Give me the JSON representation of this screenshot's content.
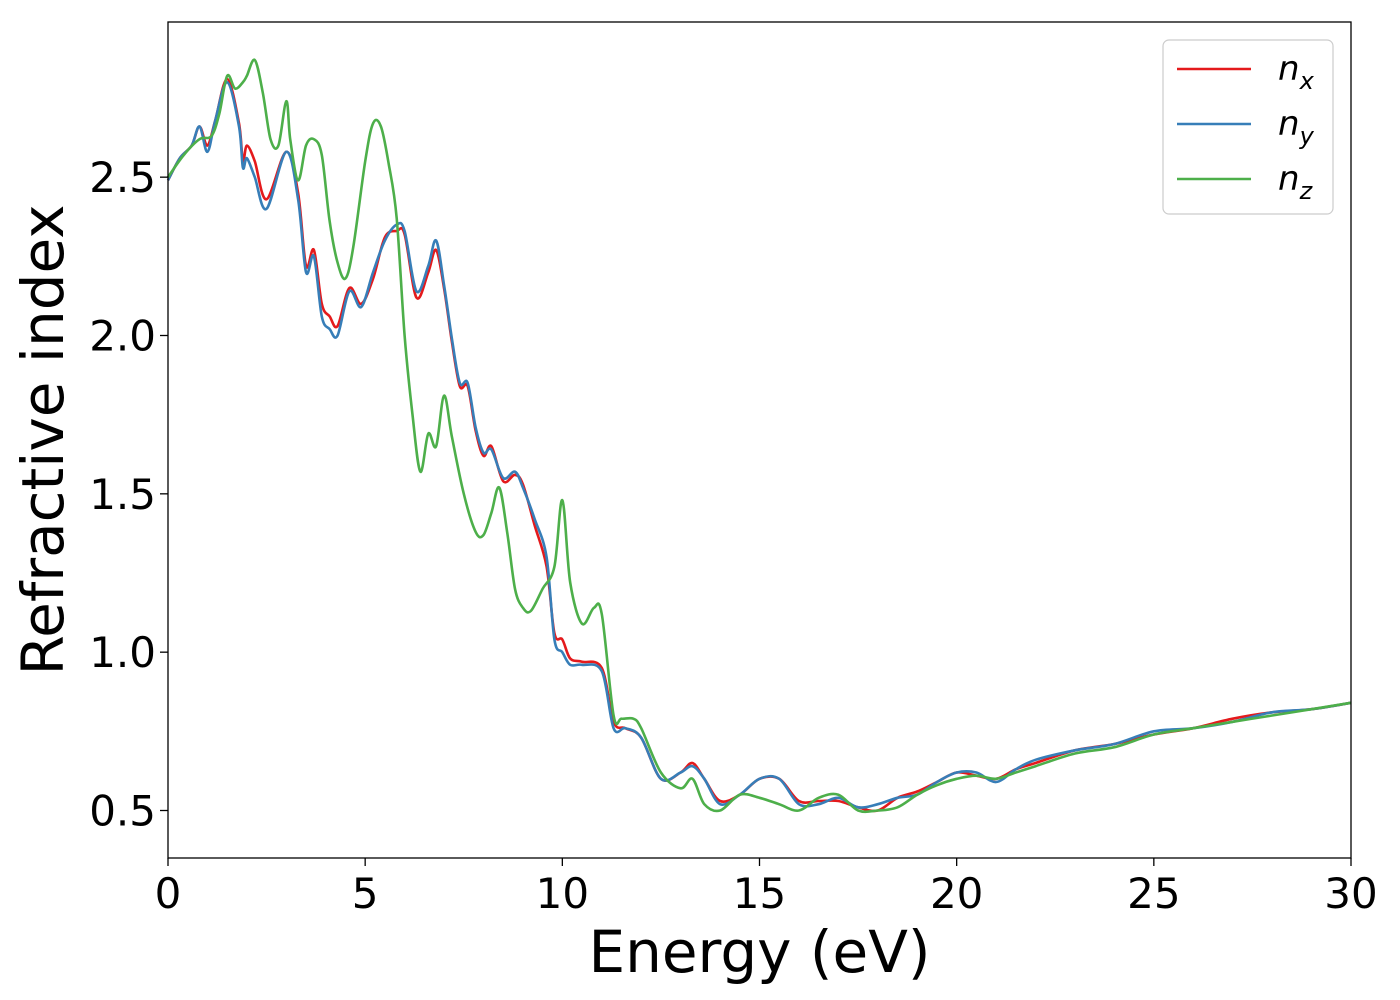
{
  "chart_data": {
    "type": "line",
    "title": "",
    "xlabel": "Energy (eV)",
    "ylabel": "Refractive index",
    "xlim": [
      0,
      30
    ],
    "ylim": [
      0.35,
      2.99
    ],
    "xticks": [
      0,
      5,
      10,
      15,
      20,
      25,
      30
    ],
    "xtick_labels": [
      "0",
      "5",
      "10",
      "15",
      "20",
      "25",
      "30"
    ],
    "yticks": [
      0.5,
      1.0,
      1.5,
      2.0,
      2.5
    ],
    "ytick_labels": [
      "0.5",
      "1.0",
      "1.5",
      "2.0",
      "2.5"
    ],
    "grid": false,
    "legend_position": "top-right",
    "series": [
      {
        "name": "n",
        "subscript": "x",
        "color": "#e41a1c",
        "x": [
          0,
          0.3,
          0.6,
          0.8,
          1.0,
          1.2,
          1.5,
          1.8,
          1.9,
          2.0,
          2.2,
          2.5,
          3.0,
          3.3,
          3.5,
          3.7,
          3.9,
          4.1,
          4.3,
          4.6,
          4.9,
          5.2,
          5.5,
          5.8,
          6.0,
          6.3,
          6.6,
          6.8,
          7.0,
          7.2,
          7.4,
          7.6,
          7.8,
          8.0,
          8.2,
          8.5,
          8.8,
          9.0,
          9.3,
          9.6,
          9.8,
          10.0,
          10.2,
          10.5,
          11.0,
          11.3,
          11.6,
          12.0,
          12.5,
          13.0,
          13.3,
          13.6,
          14.0,
          14.5,
          15.0,
          15.5,
          16.0,
          16.5,
          17.0,
          17.5,
          18.0,
          18.5,
          19.0,
          19.5,
          20.0,
          20.5,
          21.0,
          21.5,
          22.0,
          23.0,
          24.0,
          25.0,
          26.0,
          27.0,
          28.0,
          29.0,
          30.0
        ],
        "y": [
          2.49,
          2.56,
          2.6,
          2.66,
          2.6,
          2.68,
          2.81,
          2.67,
          2.55,
          2.6,
          2.55,
          2.43,
          2.58,
          2.45,
          2.22,
          2.27,
          2.1,
          2.06,
          2.03,
          2.15,
          2.1,
          2.18,
          2.31,
          2.33,
          2.32,
          2.12,
          2.2,
          2.27,
          2.15,
          1.98,
          1.84,
          1.84,
          1.7,
          1.62,
          1.65,
          1.54,
          1.56,
          1.53,
          1.4,
          1.27,
          1.06,
          1.04,
          0.98,
          0.97,
          0.95,
          0.78,
          0.76,
          0.73,
          0.6,
          0.62,
          0.65,
          0.6,
          0.53,
          0.55,
          0.6,
          0.6,
          0.53,
          0.53,
          0.53,
          0.51,
          0.5,
          0.54,
          0.56,
          0.59,
          0.62,
          0.61,
          0.6,
          0.63,
          0.65,
          0.69,
          0.71,
          0.74,
          0.76,
          0.79,
          0.81,
          0.82,
          0.84
        ]
      },
      {
        "name": "n",
        "subscript": "y",
        "color": "#377eb8",
        "x": [
          0,
          0.3,
          0.6,
          0.8,
          1.0,
          1.2,
          1.5,
          1.8,
          1.9,
          2.0,
          2.2,
          2.5,
          3.0,
          3.3,
          3.5,
          3.7,
          3.9,
          4.1,
          4.3,
          4.6,
          4.9,
          5.2,
          5.5,
          5.8,
          6.0,
          6.3,
          6.6,
          6.8,
          7.0,
          7.2,
          7.4,
          7.6,
          7.8,
          8.0,
          8.2,
          8.5,
          8.8,
          9.0,
          9.3,
          9.6,
          9.8,
          10.0,
          10.2,
          10.5,
          11.0,
          11.3,
          11.6,
          12.0,
          12.5,
          13.0,
          13.3,
          13.6,
          14.0,
          14.5,
          15.0,
          15.5,
          16.0,
          16.5,
          17.0,
          17.5,
          18.0,
          18.5,
          19.0,
          19.5,
          20.0,
          20.5,
          21.0,
          21.5,
          22.0,
          23.0,
          24.0,
          25.0,
          26.0,
          27.0,
          28.0,
          29.0,
          30.0
        ],
        "y": [
          2.49,
          2.56,
          2.6,
          2.66,
          2.58,
          2.68,
          2.8,
          2.66,
          2.53,
          2.56,
          2.5,
          2.4,
          2.58,
          2.43,
          2.2,
          2.25,
          2.06,
          2.02,
          2.0,
          2.14,
          2.09,
          2.2,
          2.3,
          2.35,
          2.33,
          2.14,
          2.22,
          2.3,
          2.16,
          1.99,
          1.85,
          1.85,
          1.71,
          1.63,
          1.64,
          1.55,
          1.57,
          1.52,
          1.42,
          1.3,
          1.04,
          1.0,
          0.96,
          0.96,
          0.94,
          0.76,
          0.76,
          0.73,
          0.6,
          0.62,
          0.64,
          0.6,
          0.52,
          0.55,
          0.6,
          0.6,
          0.52,
          0.52,
          0.54,
          0.51,
          0.52,
          0.54,
          0.55,
          0.59,
          0.62,
          0.62,
          0.59,
          0.63,
          0.66,
          0.69,
          0.71,
          0.75,
          0.76,
          0.78,
          0.81,
          0.82,
          0.84
        ]
      },
      {
        "name": "n",
        "subscript": "z",
        "color": "#4daf4a",
        "x": [
          0,
          0.4,
          0.8,
          1.1,
          1.3,
          1.5,
          1.7,
          1.9,
          2.0,
          2.2,
          2.4,
          2.6,
          2.8,
          3.0,
          3.1,
          3.3,
          3.5,
          3.7,
          3.9,
          4.1,
          4.3,
          4.5,
          4.7,
          5.0,
          5.2,
          5.4,
          5.6,
          5.8,
          6.0,
          6.2,
          6.4,
          6.6,
          6.8,
          7.0,
          7.2,
          7.5,
          7.8,
          8.0,
          8.2,
          8.4,
          8.6,
          8.8,
          9.0,
          9.2,
          9.5,
          9.8,
          10.0,
          10.2,
          10.5,
          10.8,
          11.0,
          11.3,
          11.5,
          11.8,
          12.0,
          12.5,
          13.0,
          13.3,
          13.6,
          14.0,
          14.5,
          15.0,
          15.5,
          16.0,
          16.5,
          17.0,
          17.5,
          18.0,
          18.5,
          19.0,
          19.5,
          20.0,
          20.5,
          21.0,
          21.5,
          22.0,
          23.0,
          24.0,
          25.0,
          26.0,
          27.0,
          28.0,
          29.0,
          30.0
        ],
        "y": [
          2.5,
          2.57,
          2.62,
          2.63,
          2.7,
          2.82,
          2.78,
          2.8,
          2.82,
          2.87,
          2.77,
          2.62,
          2.6,
          2.74,
          2.62,
          2.49,
          2.6,
          2.62,
          2.57,
          2.36,
          2.23,
          2.18,
          2.28,
          2.55,
          2.67,
          2.66,
          2.54,
          2.37,
          2.0,
          1.75,
          1.57,
          1.69,
          1.65,
          1.81,
          1.68,
          1.5,
          1.38,
          1.37,
          1.44,
          1.52,
          1.38,
          1.2,
          1.14,
          1.13,
          1.2,
          1.27,
          1.48,
          1.22,
          1.09,
          1.14,
          1.12,
          0.8,
          0.79,
          0.79,
          0.76,
          0.62,
          0.57,
          0.6,
          0.52,
          0.5,
          0.55,
          0.54,
          0.52,
          0.5,
          0.54,
          0.55,
          0.5,
          0.5,
          0.51,
          0.55,
          0.58,
          0.6,
          0.61,
          0.6,
          0.62,
          0.64,
          0.68,
          0.7,
          0.74,
          0.76,
          0.78,
          0.8,
          0.82,
          0.84
        ]
      }
    ]
  }
}
